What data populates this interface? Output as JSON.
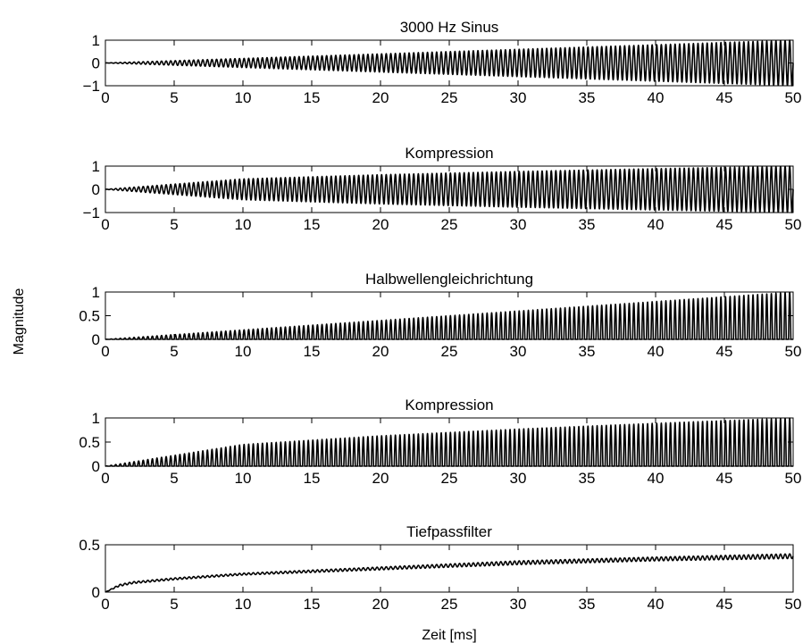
{
  "figure": {
    "ylabel": "Magnitude",
    "xlabel": "Zeit [ms]"
  },
  "chart_data": [
    {
      "type": "line",
      "title": "3000 Hz Sinus",
      "xlabel": "",
      "ylabel": "",
      "xlim": [
        0,
        50
      ],
      "ylim": [
        -1,
        1
      ],
      "xticks": [
        "0",
        "5",
        "10",
        "15",
        "20",
        "25",
        "30",
        "35",
        "40",
        "45",
        "50"
      ],
      "yticks": [
        "1",
        "0",
        "−1"
      ],
      "series": [
        {
          "signal": "sine with linearly rising amplitude",
          "frequency_hz": 3000,
          "x_ms": [
            0,
            10,
            20,
            30,
            40,
            50
          ],
          "envelope": [
            0.0,
            0.2,
            0.4,
            0.6,
            0.8,
            1.0
          ]
        }
      ]
    },
    {
      "type": "line",
      "title": "Kompression",
      "xlabel": "",
      "ylabel": "",
      "xlim": [
        0,
        50
      ],
      "ylim": [
        -1,
        1
      ],
      "xticks": [
        "0",
        "5",
        "10",
        "15",
        "20",
        "25",
        "30",
        "35",
        "40",
        "45",
        "50"
      ],
      "yticks": [
        "1",
        "0",
        "−1"
      ],
      "series": [
        {
          "signal": "compressed sine (square-root of amplitude)",
          "frequency_hz": 3000,
          "x_ms": [
            0,
            10,
            20,
            30,
            40,
            50
          ],
          "envelope": [
            0.0,
            0.45,
            0.63,
            0.77,
            0.89,
            1.0
          ]
        }
      ]
    },
    {
      "type": "line",
      "title": "Halbwellengleichrichtung",
      "xlabel": "",
      "ylabel": "",
      "xlim": [
        0,
        50
      ],
      "ylim": [
        0,
        1
      ],
      "xticks": [
        "0",
        "5",
        "10",
        "15",
        "20",
        "25",
        "30",
        "35",
        "40",
        "45",
        "50"
      ],
      "yticks": [
        "1",
        "0.5",
        "0"
      ],
      "series": [
        {
          "signal": "half-wave rectified sine",
          "frequency_hz": 3000,
          "x_ms": [
            0,
            10,
            20,
            30,
            40,
            50
          ],
          "envelope": [
            0.0,
            0.2,
            0.4,
            0.6,
            0.8,
            1.0
          ]
        }
      ]
    },
    {
      "type": "line",
      "title": "Kompression",
      "xlabel": "",
      "ylabel": "",
      "xlim": [
        0,
        50
      ],
      "ylim": [
        0,
        1
      ],
      "xticks": [
        "0",
        "5",
        "10",
        "15",
        "20",
        "25",
        "30",
        "35",
        "40",
        "45",
        "50"
      ],
      "yticks": [
        "1",
        "0.5",
        "0"
      ],
      "series": [
        {
          "signal": "compressed half-wave rectified sine",
          "frequency_hz": 3000,
          "x_ms": [
            0,
            10,
            20,
            30,
            40,
            50
          ],
          "envelope": [
            0.0,
            0.45,
            0.63,
            0.77,
            0.89,
            1.0
          ]
        }
      ]
    },
    {
      "type": "line",
      "title": "Tiefpassfilter",
      "xlabel": "Zeit [ms]",
      "ylabel": "",
      "xlim": [
        0,
        50
      ],
      "ylim": [
        0,
        0.5
      ],
      "xticks": [
        "0",
        "5",
        "10",
        "15",
        "20",
        "25",
        "30",
        "35",
        "40",
        "45",
        "50"
      ],
      "yticks": [
        "0.5",
        "0"
      ],
      "series": [
        {
          "signal": "low-pass filtered output with small ripple",
          "x_ms": [
            0,
            1,
            2,
            5,
            10,
            20,
            30,
            40,
            50
          ],
          "mean": [
            0.0,
            0.07,
            0.1,
            0.14,
            0.19,
            0.25,
            0.31,
            0.35,
            0.38
          ],
          "ripple": [
            0.0,
            0.01,
            0.01,
            0.01,
            0.01,
            0.015,
            0.02,
            0.02,
            0.025
          ]
        }
      ]
    }
  ]
}
